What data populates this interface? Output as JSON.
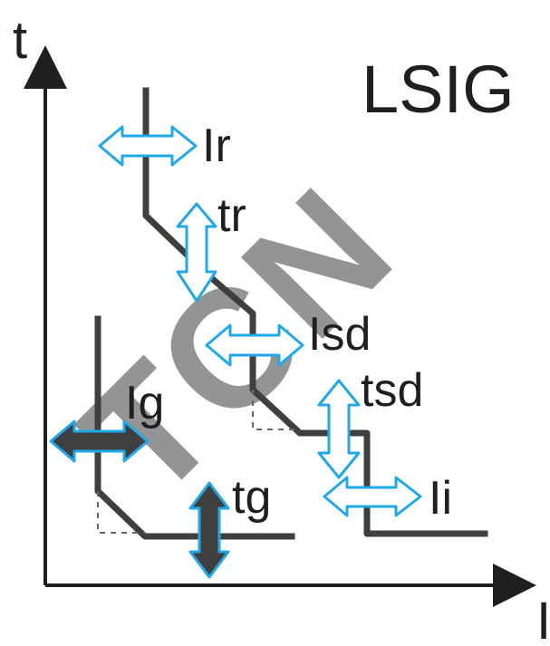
{
  "diagram": {
    "title": "LSIG",
    "axis": {
      "y_label": "t",
      "x_label": "I"
    },
    "watermark": "TCN",
    "parameters": {
      "ir": "Ir",
      "tr": "tr",
      "isd": "Isd",
      "tsd": "tsd",
      "ii": "Ii",
      "ig": "Ig",
      "tg": "tg"
    },
    "colors": {
      "main_curve": "#3f3f3f",
      "ground_curve": "#3f3f3f",
      "arrow_outline": "#21a8e8",
      "arrow_fill": "#ffffff",
      "ground_arrow_fill": "#3f3f3f",
      "dashed_guides": "#666666",
      "watermark": "#8fdad0"
    }
  }
}
